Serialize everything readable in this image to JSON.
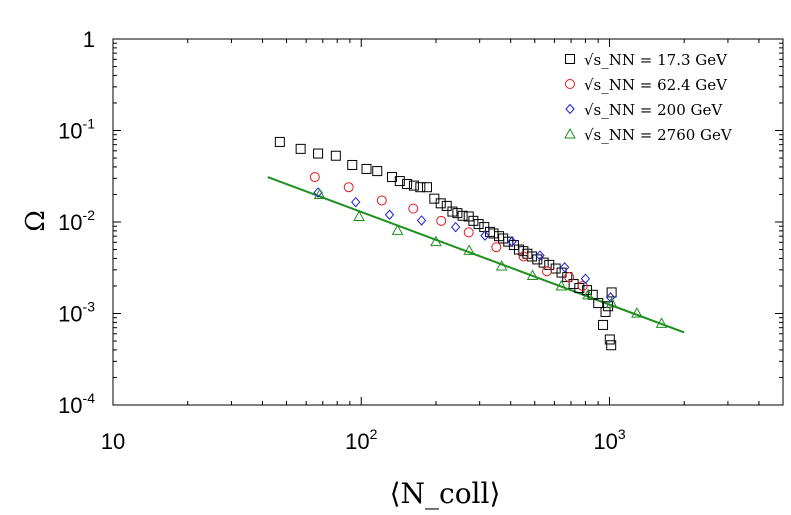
{
  "chart_data": {
    "type": "scatter",
    "title": "",
    "xlabel": "⟨N_coll⟩",
    "ylabel": "Ω",
    "xscale": "log",
    "yscale": "log",
    "xlim": [
      10,
      5000
    ],
    "ylim": [
      0.0001,
      1
    ],
    "x_ticks": [
      {
        "value": 10,
        "base": "10",
        "exp": ""
      },
      {
        "value": 100,
        "base": "10",
        "exp": "2"
      },
      {
        "value": 1000,
        "base": "10",
        "exp": "3"
      }
    ],
    "y_ticks": [
      {
        "value": 1,
        "base": "1",
        "exp": ""
      },
      {
        "value": 0.1,
        "base": "10",
        "exp": "-1"
      },
      {
        "value": 0.01,
        "base": "10",
        "exp": "-2"
      },
      {
        "value": 0.001,
        "base": "10",
        "exp": "-3"
      },
      {
        "value": 0.0001,
        "base": "10",
        "exp": "-4"
      }
    ],
    "grid": false,
    "legend_position": "top-right",
    "series": [
      {
        "name": "√s_NN = 17.3 GeV",
        "marker": "square",
        "color": "#000000",
        "x": [
          47,
          57,
          67,
          79,
          92,
          105,
          116,
          133,
          143,
          153,
          163,
          173,
          184,
          197,
          209,
          221,
          233,
          244,
          256,
          271,
          283,
          297,
          313,
          330,
          341,
          359,
          373,
          391,
          412,
          432,
          450,
          467,
          487,
          512,
          543,
          572,
          607,
          641,
          676,
          717,
          756,
          812,
          856,
          901,
          942,
          964,
          987,
          1003,
          1016,
          1020
        ],
        "y": [
          0.075,
          0.063,
          0.056,
          0.053,
          0.042,
          0.038,
          0.036,
          0.031,
          0.028,
          0.026,
          0.025,
          0.024,
          0.024,
          0.018,
          0.016,
          0.015,
          0.013,
          0.0125,
          0.0117,
          0.0115,
          0.0103,
          0.0095,
          0.0088,
          0.0078,
          0.0075,
          0.007,
          0.0066,
          0.0061,
          0.0056,
          0.005,
          0.0048,
          0.0045,
          0.0042,
          0.0039,
          0.0036,
          0.0034,
          0.0031,
          0.0028,
          0.0025,
          0.0021,
          0.0019,
          0.0018,
          0.0016,
          0.0013,
          0.00075,
          0.00104,
          0.0012,
          0.00052,
          0.00045,
          0.0017
        ]
      },
      {
        "name": "√s_NN = 62.4 GeV",
        "marker": "circle",
        "color": "#e41a1c",
        "x": [
          65,
          89,
          121,
          162,
          210,
          271,
          350,
          451,
          560,
          688,
          780
        ],
        "y": [
          0.031,
          0.024,
          0.0172,
          0.014,
          0.0103,
          0.0077,
          0.0053,
          0.0042,
          0.0029,
          0.0025,
          0.002
        ]
      },
      {
        "name": "√s_NN = 200 GeV",
        "marker": "diamond",
        "color": "#1f1fd6",
        "x": [
          67,
          95,
          130,
          175,
          240,
          315,
          405,
          525,
          660,
          800,
          1010
        ],
        "y": [
          0.021,
          0.0165,
          0.012,
          0.0104,
          0.0088,
          0.0071,
          0.0061,
          0.0043,
          0.0032,
          0.0024,
          0.0015
        ]
      },
      {
        "name": "√s_NN = 2760 GeV",
        "marker": "triangle",
        "color": "#1f8f1f",
        "x": [
          68,
          98,
          140,
          200,
          272,
          368,
          490,
          640,
          820,
          1020,
          1290,
          1620
        ],
        "y": [
          0.02,
          0.0115,
          0.0081,
          0.0061,
          0.0049,
          0.0033,
          0.0026,
          0.002,
          0.0016,
          0.0013,
          0.00101,
          0.00078
        ]
      }
    ],
    "fit_line": {
      "color": "#1f8f1f",
      "x": [
        42,
        2000
      ],
      "y": [
        0.031,
        0.00062
      ]
    }
  }
}
